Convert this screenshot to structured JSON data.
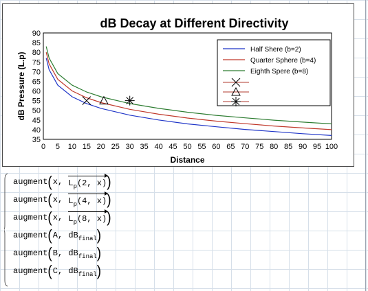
{
  "chart_data": {
    "type": "line",
    "title": "dB Decay at Different Directivity",
    "xlabel": "Distance",
    "ylabel": "dB Pressure (L.p)",
    "xlim": [
      0,
      100
    ],
    "ylim": [
      35,
      90
    ],
    "xticks": [
      0,
      5,
      10,
      15,
      20,
      25,
      30,
      35,
      40,
      45,
      50,
      55,
      60,
      65,
      70,
      75,
      80,
      85,
      90,
      95,
      100
    ],
    "yticks": [
      35,
      40,
      45,
      50,
      55,
      60,
      65,
      70,
      75,
      80,
      85,
      90
    ],
    "grid": false,
    "legend_position": "top-right",
    "series": [
      {
        "name": "Half Shere (b=2)",
        "color": "#1f35c8",
        "values": [
          [
            1,
            77.0
          ],
          [
            2,
            71.0
          ],
          [
            5,
            63.0
          ],
          [
            10,
            57.0
          ],
          [
            15,
            53.5
          ],
          [
            20,
            51.0
          ],
          [
            30,
            47.5
          ],
          [
            40,
            45.0
          ],
          [
            50,
            43.0
          ],
          [
            60,
            41.5
          ],
          [
            70,
            40.1
          ],
          [
            80,
            39.0
          ],
          [
            90,
            37.9
          ],
          [
            100,
            37.0
          ]
        ]
      },
      {
        "name": "Quarter Sphere (b=4)",
        "color": "#c0392b",
        "values": [
          [
            1,
            80.0
          ],
          [
            2,
            74.0
          ],
          [
            5,
            66.0
          ],
          [
            10,
            60.0
          ],
          [
            15,
            56.5
          ],
          [
            20,
            54.0
          ],
          [
            30,
            50.5
          ],
          [
            40,
            48.0
          ],
          [
            50,
            46.0
          ],
          [
            60,
            44.4
          ],
          [
            70,
            43.1
          ],
          [
            80,
            41.9
          ],
          [
            90,
            40.9
          ],
          [
            100,
            40.0
          ]
        ]
      },
      {
        "name": "Eighth Spere (b=8)",
        "color": "#2e7d32",
        "values": [
          [
            1,
            83.0
          ],
          [
            2,
            77.0
          ],
          [
            5,
            69.0
          ],
          [
            10,
            63.0
          ],
          [
            15,
            59.5
          ],
          [
            20,
            57.0
          ],
          [
            30,
            53.5
          ],
          [
            40,
            51.0
          ],
          [
            50,
            49.0
          ],
          [
            60,
            47.4
          ],
          [
            70,
            46.1
          ],
          [
            80,
            44.9
          ],
          [
            90,
            43.9
          ],
          [
            100,
            43.0
          ]
        ]
      }
    ],
    "markers": [
      {
        "symbol": "x",
        "x": 15,
        "y": 55
      },
      {
        "symbol": "triangle",
        "x": 21,
        "y": 55
      },
      {
        "symbol": "asterisk",
        "x": 30,
        "y": 55
      }
    ]
  },
  "expressions": [
    {
      "fn": "augment",
      "arg1": "x",
      "base": "L",
      "sub": "p",
      "inner": "(2, x)",
      "vectorized": true
    },
    {
      "fn": "augment",
      "arg1": "x",
      "base": "L",
      "sub": "p",
      "inner": "(4, x)",
      "vectorized": true
    },
    {
      "fn": "augment",
      "arg1": "x",
      "base": "L",
      "sub": "p",
      "inner": "(8, x)",
      "vectorized": true
    },
    {
      "fn": "augment",
      "arg1": "A",
      "base": "dB",
      "sub": "final",
      "inner": "",
      "vectorized": false
    },
    {
      "fn": "augment",
      "arg1": "B",
      "base": "dB",
      "sub": "final",
      "inner": "",
      "vectorized": false
    },
    {
      "fn": "augment",
      "arg1": "C",
      "base": "dB",
      "sub": "final",
      "inner": "",
      "vectorized": false
    }
  ]
}
